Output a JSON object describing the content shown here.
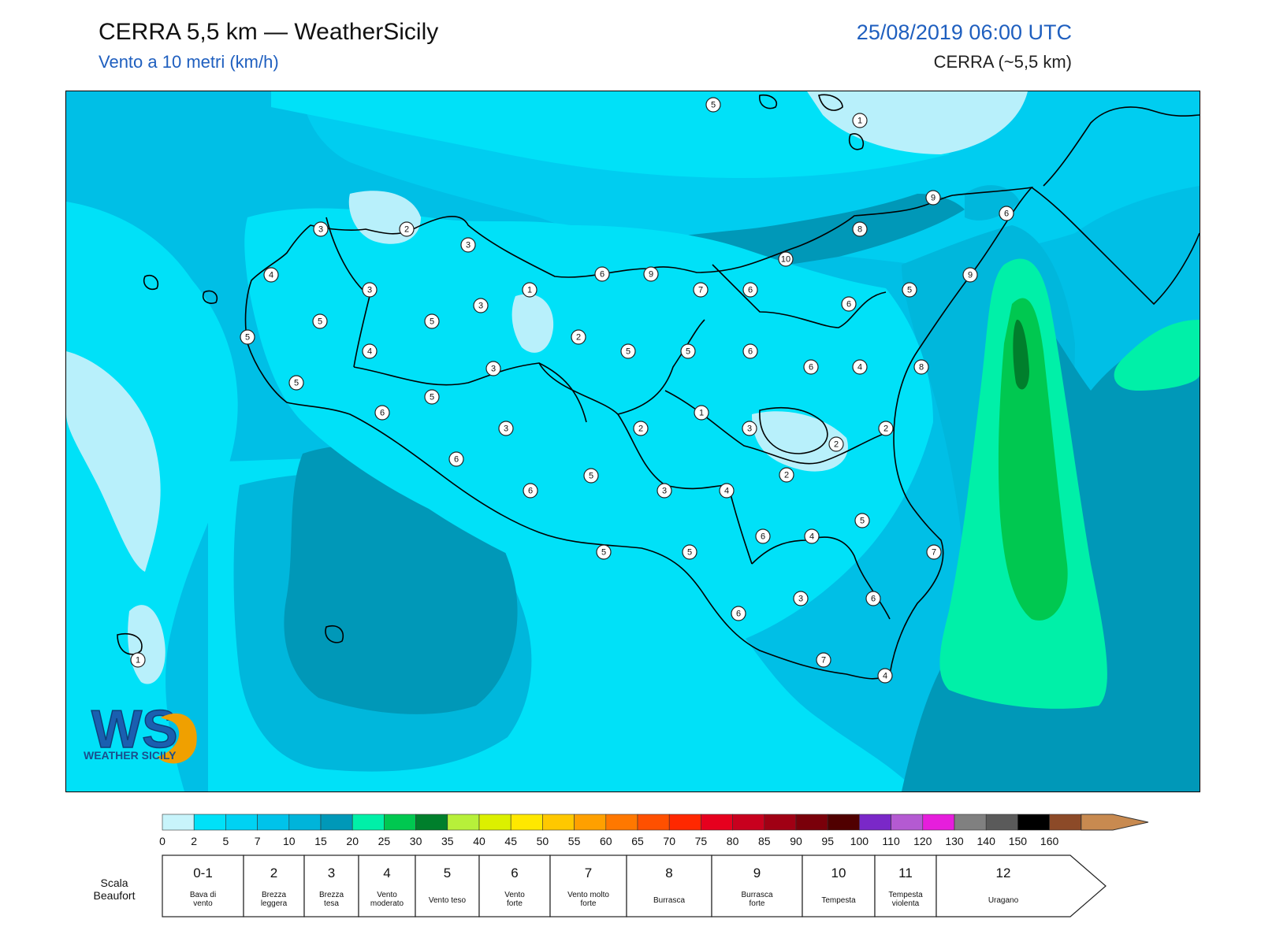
{
  "header": {
    "title": "CERRA 5,5 km — WeatherSicily",
    "subtitle": "Vento a 10 metri (km/h)",
    "datetime": "25/08/2019 06:00 UTC",
    "model": "CERRA (~5,5 km)"
  },
  "logo": {
    "text": "WEATHER SICILY",
    "letters": "WS"
  },
  "map": {
    "colors": {
      "sea_base": "#00bfe6",
      "light": "#b8f0fb",
      "c2_5": "#00e1f8",
      "c5_7": "#00cdf0",
      "c7_10": "#00b7dc",
      "c10_15": "#0098b8",
      "c15_20": "#00f0a8",
      "c20_25": "#00c850",
      "c25_30": "#007f2c"
    },
    "stations": [
      {
        "v": "5"
      },
      {
        "v": "1"
      },
      {
        "v": "9"
      },
      {
        "v": "6"
      },
      {
        "v": "8"
      },
      {
        "v": "10"
      },
      {
        "v": "3"
      },
      {
        "v": "2"
      },
      {
        "v": "3"
      },
      {
        "v": "4"
      },
      {
        "v": "3"
      },
      {
        "v": "5"
      },
      {
        "v": "5"
      },
      {
        "v": "3"
      },
      {
        "v": "1"
      },
      {
        "v": "5"
      },
      {
        "v": "6"
      },
      {
        "v": "9"
      },
      {
        "v": "7"
      },
      {
        "v": "6"
      },
      {
        "v": "6"
      },
      {
        "v": "9"
      },
      {
        "v": "5"
      },
      {
        "v": "4"
      },
      {
        "v": "2"
      },
      {
        "v": "3"
      },
      {
        "v": "5"
      },
      {
        "v": "5"
      },
      {
        "v": "6"
      },
      {
        "v": "6"
      },
      {
        "v": "4"
      },
      {
        "v": "8"
      },
      {
        "v": "5"
      },
      {
        "v": "6"
      },
      {
        "v": "5"
      },
      {
        "v": "3"
      },
      {
        "v": "2"
      },
      {
        "v": "1"
      },
      {
        "v": "3"
      },
      {
        "v": "2"
      },
      {
        "v": "2"
      },
      {
        "v": "6"
      },
      {
        "v": "5"
      },
      {
        "v": "2"
      },
      {
        "v": "6"
      },
      {
        "v": "3"
      },
      {
        "v": "4"
      },
      {
        "v": "5"
      },
      {
        "v": "6"
      },
      {
        "v": "4"
      },
      {
        "v": "7"
      },
      {
        "v": "5"
      },
      {
        "v": "5"
      },
      {
        "v": "3"
      },
      {
        "v": "6"
      },
      {
        "v": "6"
      },
      {
        "v": "7"
      },
      {
        "v": "4"
      },
      {
        "v": "1"
      }
    ]
  },
  "colorbar": {
    "colors": [
      "#c8f4fb",
      "#00e1f8",
      "#00d2f3",
      "#00c3ea",
      "#00b4da",
      "#0098b8",
      "#00f0a8",
      "#00c850",
      "#007f2c",
      "#b7f03a",
      "#dcf000",
      "#ffe800",
      "#ffc800",
      "#ffa000",
      "#ff7800",
      "#ff5000",
      "#ff2800",
      "#e6001e",
      "#c8001e",
      "#a00014",
      "#7a000a",
      "#500000",
      "#7a28c8",
      "#b45ad2",
      "#e61edc",
      "#808080",
      "#5a5a5a",
      "#000000",
      "#8c4a28",
      "#c88a50"
    ],
    "ticks": [
      "0",
      "2",
      "5",
      "7",
      "10",
      "15",
      "20",
      "25",
      "30",
      "35",
      "40",
      "45",
      "50",
      "55",
      "60",
      "65",
      "70",
      "75",
      "80",
      "85",
      "90",
      "95",
      "100",
      "110",
      "120",
      "130",
      "140",
      "150",
      "160"
    ]
  },
  "beaufort": {
    "label_line1": "Scala",
    "label_line2": "Beaufort",
    "cells": [
      {
        "num": "0-1",
        "l1": "Bava di",
        "l2": "vento"
      },
      {
        "num": "2",
        "l1": "Brezza",
        "l2": "leggera"
      },
      {
        "num": "3",
        "l1": "Brezza",
        "l2": "tesa"
      },
      {
        "num": "4",
        "l1": "Vento",
        "l2": "moderato"
      },
      {
        "num": "5",
        "l1": "Vento teso",
        "l2": ""
      },
      {
        "num": "6",
        "l1": "Vento",
        "l2": "forte"
      },
      {
        "num": "7",
        "l1": "Vento molto",
        "l2": "forte"
      },
      {
        "num": "8",
        "l1": "Burrasca",
        "l2": ""
      },
      {
        "num": "9",
        "l1": "Burrasca",
        "l2": "forte"
      },
      {
        "num": "10",
        "l1": "Tempesta",
        "l2": ""
      },
      {
        "num": "11",
        "l1": "Tempesta",
        "l2": "violenta"
      },
      {
        "num": "12",
        "l1": "Uragano",
        "l2": ""
      }
    ]
  }
}
